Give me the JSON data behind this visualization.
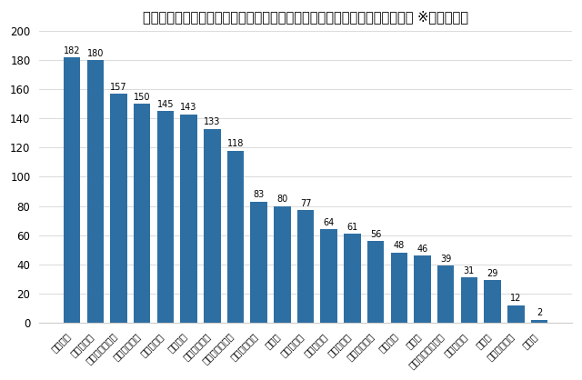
{
  "title": "自分が頑張っている時に、（上司から）どんな言葉を掛けてほしいですか？ ※複数選択可",
  "categories": [
    "助かるよ",
    "ありがとう",
    "よくやってるね",
    "頼りになるね",
    "成長したね",
    "お疲れ様",
    "頑張ってるね",
    "無理しないでね",
    "期待してるよ",
    "頼むね",
    "その調子で",
    "手伝おうか",
    "調子いいね",
    "応援してるよ",
    "えらいね",
    "頑張れ",
    "いい調子してるね",
    "輝いてるね",
    "悪いね",
    "忙しそうだね",
    "その他"
  ],
  "values": [
    182,
    180,
    157,
    150,
    145,
    143,
    133,
    118,
    83,
    80,
    77,
    64,
    61,
    56,
    48,
    46,
    39,
    31,
    29,
    12,
    2
  ],
  "bar_color": "#2E6FA3",
  "ylim": [
    0,
    200
  ],
  "yticks": [
    0,
    20,
    40,
    60,
    80,
    100,
    120,
    140,
    160,
    180,
    200
  ],
  "title_fontsize": 10.5,
  "value_fontsize": 7,
  "xlabel_fontsize": 7.5,
  "ytick_fontsize": 8.5,
  "background_color": "#ffffff",
  "grid_color": "#cccccc"
}
